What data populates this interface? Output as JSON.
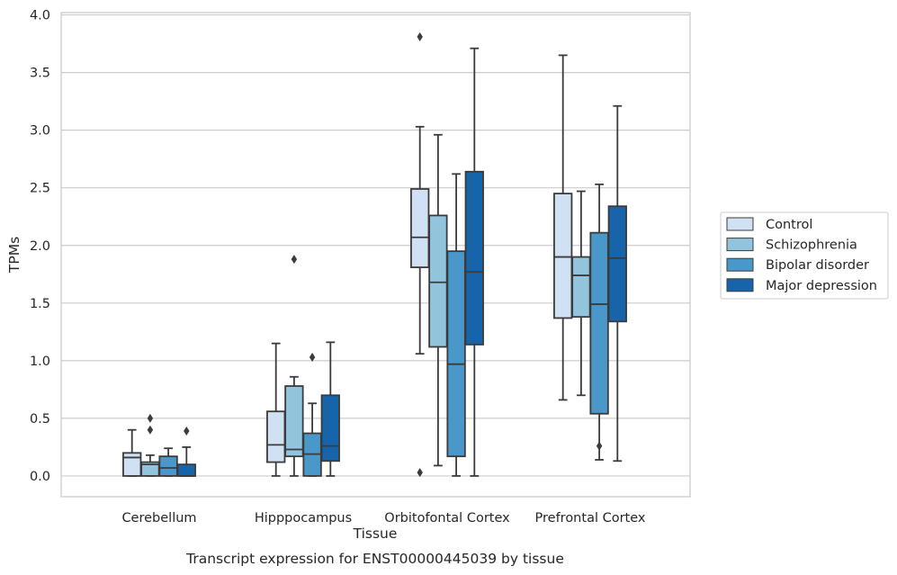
{
  "chart_data": {
    "type": "box",
    "title": "",
    "xlabel": "Tissue",
    "ylabel": "TPMs",
    "caption": "Transcript expression for ENST00000445039 by tissue",
    "categories": [
      "Cerebellum",
      "Hipppocampus",
      "Orbitofontal Cortex",
      "Prefrontal Cortex"
    ],
    "ylim": [
      -0.18,
      4.02
    ],
    "yticks": [
      "0.0",
      "0.5",
      "1.0",
      "1.5",
      "2.0",
      "2.5",
      "3.0",
      "3.5",
      "4.0"
    ],
    "grid": "horizontal",
    "legend_position": "right",
    "colors": [
      "#cfe1f2",
      "#93c4de",
      "#4a98c9",
      "#1764ab"
    ],
    "series": [
      {
        "name": "Control",
        "boxes": [
          {
            "whisker_low": 0.0,
            "q1": 0.0,
            "median": 0.16,
            "q3": 0.2,
            "whisker_high": 0.4,
            "outliers": []
          },
          {
            "whisker_low": 0.0,
            "q1": 0.12,
            "median": 0.27,
            "q3": 0.56,
            "whisker_high": 1.15,
            "outliers": []
          },
          {
            "whisker_low": 1.06,
            "q1": 1.81,
            "median": 2.07,
            "q3": 2.49,
            "whisker_high": 3.03,
            "outliers": [
              3.81,
              0.03
            ]
          },
          {
            "whisker_low": 0.66,
            "q1": 1.37,
            "median": 1.9,
            "q3": 2.45,
            "whisker_high": 3.65,
            "outliers": []
          }
        ]
      },
      {
        "name": "Schizophrenia",
        "boxes": [
          {
            "whisker_low": 0.0,
            "q1": 0.0,
            "median": 0.1,
            "q3": 0.12,
            "whisker_high": 0.18,
            "outliers": [
              0.5,
              0.4
            ]
          },
          {
            "whisker_low": 0.0,
            "q1": 0.17,
            "median": 0.23,
            "q3": 0.78,
            "whisker_high": 0.86,
            "outliers": [
              1.88
            ]
          },
          {
            "whisker_low": 0.09,
            "q1": 1.12,
            "median": 1.68,
            "q3": 2.26,
            "whisker_high": 2.96,
            "outliers": []
          },
          {
            "whisker_low": 0.7,
            "q1": 1.38,
            "median": 1.74,
            "q3": 1.9,
            "whisker_high": 2.47,
            "outliers": []
          }
        ]
      },
      {
        "name": "Bipolar disorder",
        "boxes": [
          {
            "whisker_low": 0.0,
            "q1": 0.0,
            "median": 0.07,
            "q3": 0.17,
            "whisker_high": 0.24,
            "outliers": []
          },
          {
            "whisker_low": 0.0,
            "q1": 0.0,
            "median": 0.19,
            "q3": 0.37,
            "whisker_high": 0.63,
            "outliers": [
              1.03
            ]
          },
          {
            "whisker_low": 0.0,
            "q1": 0.17,
            "median": 0.97,
            "q3": 1.95,
            "whisker_high": 2.62,
            "outliers": []
          },
          {
            "whisker_low": 0.14,
            "q1": 0.54,
            "median": 1.49,
            "q3": 2.11,
            "whisker_high": 2.53,
            "outliers": [
              0.26
            ]
          }
        ]
      },
      {
        "name": "Major depression",
        "boxes": [
          {
            "whisker_low": 0.0,
            "q1": 0.0,
            "median": 0.0,
            "q3": 0.1,
            "whisker_high": 0.25,
            "outliers": [
              0.39
            ]
          },
          {
            "whisker_low": 0.0,
            "q1": 0.13,
            "median": 0.26,
            "q3": 0.7,
            "whisker_high": 1.16,
            "outliers": []
          },
          {
            "whisker_low": 0.0,
            "q1": 1.14,
            "median": 1.77,
            "q3": 2.64,
            "whisker_high": 3.71,
            "outliers": []
          },
          {
            "whisker_low": 0.13,
            "q1": 1.34,
            "median": 1.89,
            "q3": 2.34,
            "whisker_high": 3.21,
            "outliers": []
          }
        ]
      }
    ]
  }
}
